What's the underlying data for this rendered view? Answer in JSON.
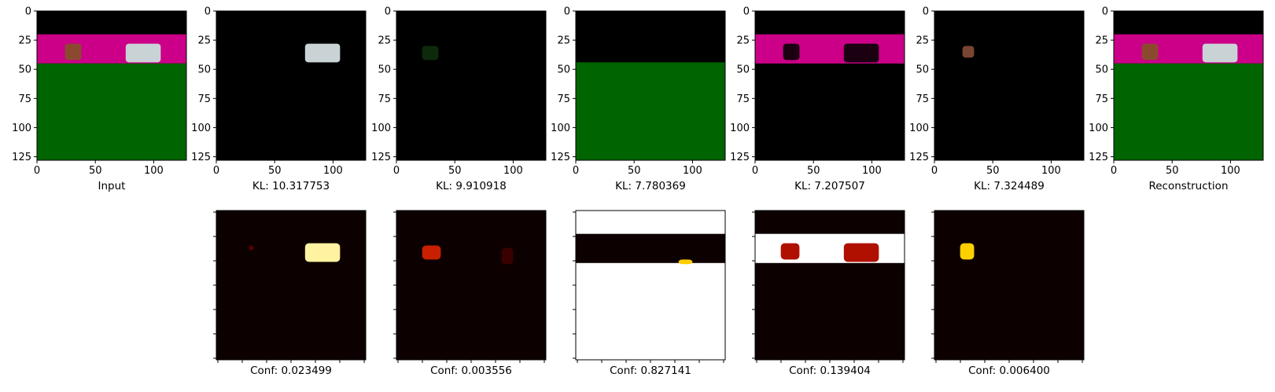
{
  "chart_data": [
    {
      "type": "image",
      "panel": "input",
      "xlabel": "Input",
      "xlim": [
        0,
        128
      ],
      "ylim": [
        128,
        0
      ],
      "xticks": [
        0,
        50,
        100
      ],
      "yticks": [
        0,
        25,
        50,
        75,
        100,
        125
      ],
      "regions": [
        {
          "rows": [
            0,
            20
          ],
          "color": "#000000"
        },
        {
          "rows": [
            20,
            45
          ],
          "color": "#cc0088"
        },
        {
          "rows": [
            45,
            128
          ],
          "color": "#006400"
        }
      ],
      "objects": [
        {
          "name": "brown block",
          "x": [
            24,
            38
          ],
          "y": [
            28,
            42
          ],
          "color": "#8b4a30"
        },
        {
          "name": "white car",
          "x": [
            76,
            106
          ],
          "y": [
            28,
            44
          ],
          "color": "#c9d3d6"
        }
      ]
    },
    {
      "type": "image",
      "panel": "slot-1",
      "xlabel": "KL: 10.317753",
      "xlim": [
        0,
        128
      ],
      "ylim": [
        128,
        0
      ],
      "xticks": [
        0,
        50,
        100
      ],
      "yticks": [
        0,
        25,
        50,
        75,
        100,
        125
      ],
      "objects": [
        {
          "name": "white car",
          "x": [
            76,
            106
          ],
          "y": [
            28,
            44
          ],
          "color": "#c9d3d6"
        }
      ]
    },
    {
      "type": "image",
      "panel": "slot-2",
      "xlabel": "KL: 9.910918",
      "xlim": [
        0,
        128
      ],
      "ylim": [
        128,
        0
      ],
      "xticks": [
        0,
        50,
        100
      ],
      "yticks": [
        0,
        25,
        50,
        75,
        100,
        125
      ],
      "objects": [
        {
          "name": "faint block",
          "x": [
            22,
            36
          ],
          "y": [
            30,
            42
          ],
          "color": "#0d2a0d"
        }
      ]
    },
    {
      "type": "image",
      "panel": "slot-3",
      "xlabel": "KL: 7.780369",
      "xlim": [
        0,
        128
      ],
      "ylim": [
        128,
        0
      ],
      "xticks": [
        0,
        50,
        100
      ],
      "yticks": [
        0,
        25,
        50,
        75,
        100,
        125
      ],
      "regions": [
        {
          "rows": [
            44,
            128
          ],
          "color": "#006400"
        }
      ]
    },
    {
      "type": "image",
      "panel": "slot-4",
      "xlabel": "KL: 7.207507",
      "xlim": [
        0,
        128
      ],
      "ylim": [
        128,
        0
      ],
      "xticks": [
        0,
        50,
        100
      ],
      "yticks": [
        0,
        25,
        50,
        75,
        100,
        125
      ],
      "regions": [
        {
          "rows": [
            20,
            45
          ],
          "color": "#cc0088"
        }
      ],
      "objects": [
        {
          "name": "dark block",
          "x": [
            24,
            38
          ],
          "y": [
            28,
            42
          ],
          "color": "#1a0010"
        },
        {
          "name": "dark car",
          "x": [
            76,
            106
          ],
          "y": [
            28,
            44
          ],
          "color": "#1a0010"
        }
      ]
    },
    {
      "type": "image",
      "panel": "slot-5",
      "xlabel": "KL: 7.324489",
      "xlim": [
        0,
        128
      ],
      "ylim": [
        128,
        0
      ],
      "xticks": [
        0,
        50,
        100
      ],
      "yticks": [
        0,
        25,
        50,
        75,
        100,
        125
      ],
      "objects": [
        {
          "name": "brown block",
          "x": [
            24,
            34
          ],
          "y": [
            30,
            40
          ],
          "color": "#7a4432"
        }
      ]
    },
    {
      "type": "image",
      "panel": "reconstruction",
      "xlabel": "Reconstruction",
      "xlim": [
        0,
        128
      ],
      "ylim": [
        128,
        0
      ],
      "xticks": [
        0,
        50,
        100
      ],
      "yticks": [
        0,
        25,
        50,
        75,
        100,
        125
      ],
      "regions": [
        {
          "rows": [
            0,
            20
          ],
          "color": "#000000"
        },
        {
          "rows": [
            20,
            45
          ],
          "color": "#cc0088"
        },
        {
          "rows": [
            45,
            128
          ],
          "color": "#006400"
        }
      ],
      "objects": [
        {
          "name": "brown block",
          "x": [
            24,
            38
          ],
          "y": [
            28,
            42
          ],
          "color": "#8b4a30"
        },
        {
          "name": "white car",
          "x": [
            76,
            106
          ],
          "y": [
            28,
            44
          ],
          "color": "#c9d3d6"
        }
      ]
    },
    {
      "type": "heatmap",
      "panel": "conf-1",
      "xlabel": "Conf: 0.023499",
      "colormap": "hot",
      "tick_labels": false,
      "background": "#0d0000",
      "hotspots": [
        {
          "x": [
            76,
            106
          ],
          "y": [
            28,
            44
          ],
          "color": "#fff2a0"
        },
        {
          "x": [
            28,
            32
          ],
          "y": [
            30,
            34
          ],
          "color": "#5a0000"
        }
      ]
    },
    {
      "type": "heatmap",
      "panel": "conf-2",
      "xlabel": "Conf: 0.003556",
      "colormap": "hot",
      "tick_labels": false,
      "background": "#0d0000",
      "hotspots": [
        {
          "x": [
            22,
            38
          ],
          "y": [
            30,
            42
          ],
          "color": "#c82000"
        },
        {
          "x": [
            90,
            100
          ],
          "y": [
            32,
            46
          ],
          "color": "#3a0000"
        }
      ]
    },
    {
      "type": "heatmap",
      "panel": "conf-3",
      "xlabel": "Conf: 0.827141",
      "colormap": "hot",
      "tick_labels": false,
      "background": "#ffffff",
      "regions": [
        {
          "rows": [
            20,
            45
          ],
          "color": "#0d0000"
        }
      ],
      "hotspots": [
        {
          "x": [
            88,
            100
          ],
          "y": [
            42,
            46
          ],
          "color": "#ffcc00"
        }
      ]
    },
    {
      "type": "heatmap",
      "panel": "conf-4",
      "xlabel": "Conf: 0.139404",
      "colormap": "hot",
      "tick_labels": false,
      "background": "#0d0000",
      "regions": [
        {
          "rows": [
            20,
            45
          ],
          "color": "#ffffff"
        }
      ],
      "hotspots": [
        {
          "x": [
            22,
            38
          ],
          "y": [
            28,
            42
          ],
          "color": "#b01000"
        },
        {
          "x": [
            76,
            106
          ],
          "y": [
            28,
            44
          ],
          "color": "#b01000"
        }
      ]
    },
    {
      "type": "heatmap",
      "panel": "conf-5",
      "xlabel": "Conf: 0.006400",
      "colormap": "hot",
      "tick_labels": false,
      "background": "#0d0000",
      "hotspots": [
        {
          "x": [
            22,
            34
          ],
          "y": [
            28,
            42
          ],
          "color": "#ffd000"
        }
      ]
    }
  ]
}
